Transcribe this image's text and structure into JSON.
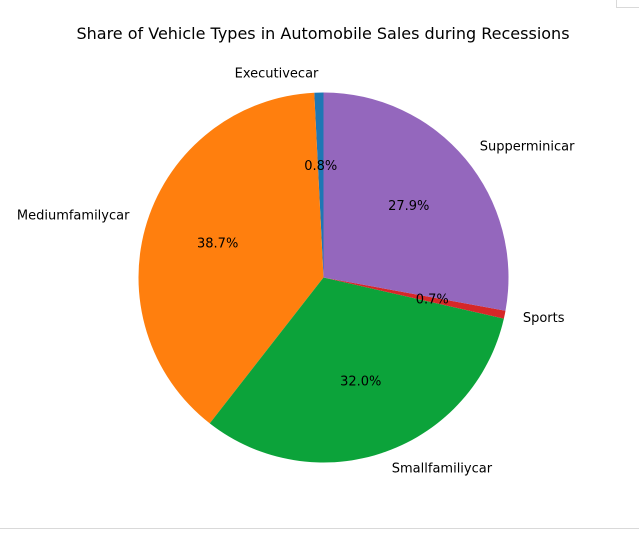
{
  "chart_data": {
    "type": "pie",
    "title": "Share of Vehicle Types in Automobile Sales during Recessions",
    "slices": [
      {
        "label": "Executivecar",
        "value": 0.8,
        "pct_label": "0.8%",
        "color": "#1f77b4"
      },
      {
        "label": "Mediumfamilycar",
        "value": 38.7,
        "pct_label": "38.7%",
        "color": "#ff7f0e"
      },
      {
        "label": "Smallfamiliycar",
        "value": 32.0,
        "pct_label": "32.0%",
        "color": "#0ca33a"
      },
      {
        "label": "Sports",
        "value": 0.7,
        "pct_label": "0.7%",
        "color": "#d62728"
      },
      {
        "label": "Supperminicar",
        "value": 27.9,
        "pct_label": "27.9%",
        "color": "#9467bd"
      }
    ],
    "start_angle_deg": 90,
    "direction": "counterclockwise",
    "legend": "none"
  }
}
